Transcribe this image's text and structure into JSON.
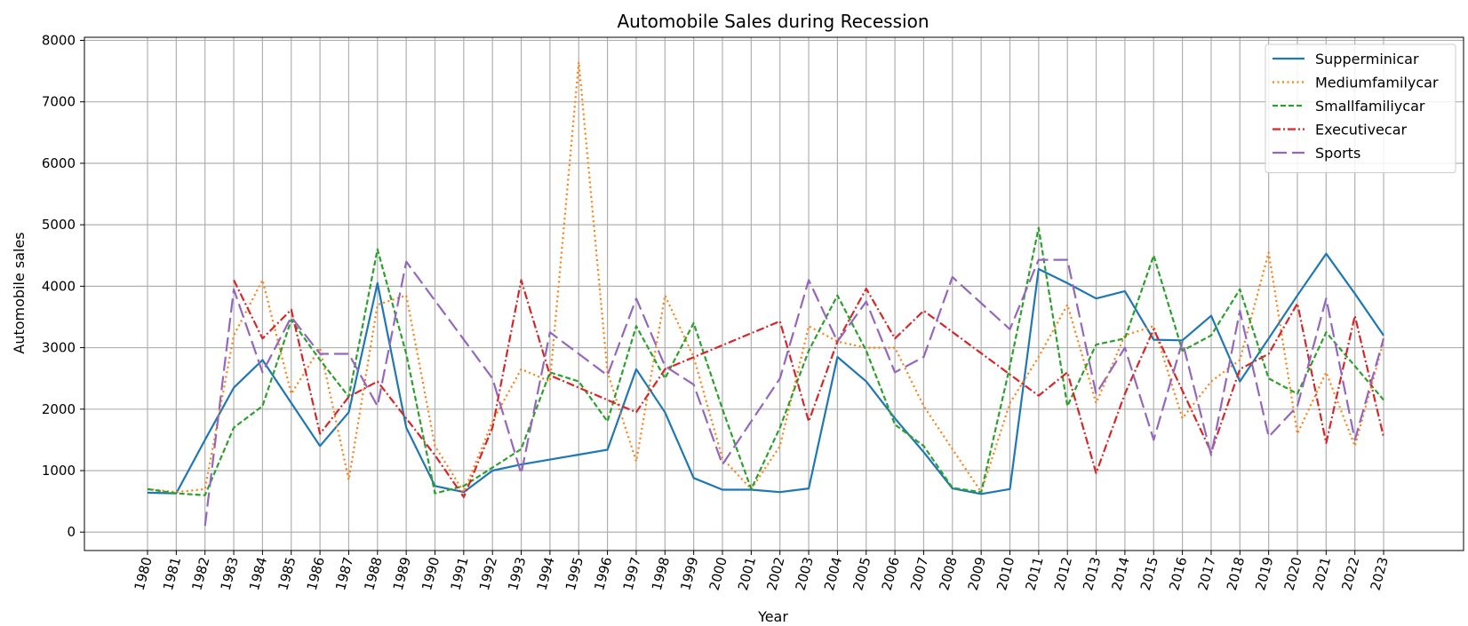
{
  "chart_data": {
    "type": "line",
    "title": "Automobile Sales during Recession",
    "xlabel": "Year",
    "ylabel": "Automobile sales",
    "ylim": [
      -300,
      8050
    ],
    "yticks": [
      0,
      1000,
      2000,
      3000,
      4000,
      5000,
      6000,
      7000,
      8000
    ],
    "grid": true,
    "legend_position": "top-right",
    "x": [
      "1980",
      "1981",
      "1982",
      "1983",
      "1984",
      "1985",
      "1986",
      "1987",
      "1988",
      "1989",
      "1990",
      "1991",
      "1992",
      "1993",
      "1994",
      "1995",
      "1996",
      "1997",
      "1998",
      "1999",
      "2000",
      "2001",
      "2002",
      "2003",
      "2004",
      "2005",
      "2006",
      "2007",
      "2008",
      "2009",
      "2010",
      "2011",
      "2012",
      "2013",
      "2014",
      "2015",
      "2016",
      "2017",
      "2018",
      "2019",
      "2020",
      "2021",
      "2022",
      "2023"
    ],
    "series": [
      {
        "name": "Supperminicar",
        "color": "#1f77b4",
        "dash": "solid",
        "values": [
          640,
          630,
          1500,
          2350,
          2800,
          2100,
          1400,
          1950,
          4050,
          1700,
          750,
          650,
          1000,
          1100,
          1180,
          1260,
          1340,
          2650,
          1950,
          880,
          690,
          690,
          650,
          710,
          2850,
          2450,
          1850,
          1300,
          710,
          620,
          700,
          4280,
          4050,
          3800,
          3920,
          3130,
          3120,
          3520,
          2450,
          3150,
          3850,
          4530,
          3880,
          3200
        ]
      },
      {
        "name": "Mediumfamilycar",
        "color": "#ff7f0e",
        "dash": "dotted",
        "values": [
          700,
          650,
          700,
          3200,
          4100,
          2250,
          3000,
          850,
          3700,
          3850,
          1400,
          650,
          1800,
          2650,
          2450,
          7650,
          2600,
          1150,
          3850,
          2850,
          1200,
          700,
          1400,
          3350,
          3100,
          3000,
          3000,
          2050,
          1350,
          650,
          2100,
          2850,
          3700,
          2100,
          3200,
          3350,
          1850,
          2450,
          2800,
          4550,
          1600,
          2600,
          1400,
          3100
        ]
      },
      {
        "name": "Smallfamiliycar",
        "color": "#2ca02c",
        "dash": "dashed",
        "values": [
          700,
          630,
          600,
          1700,
          2050,
          3450,
          2800,
          2200,
          4600,
          2900,
          630,
          750,
          1050,
          1350,
          2600,
          2450,
          1800,
          3350,
          2500,
          3400,
          2000,
          700,
          1700,
          2950,
          3850,
          2950,
          1750,
          1400,
          720,
          650,
          2700,
          4950,
          2050,
          3050,
          3150,
          4500,
          2950,
          3200,
          3950,
          2500,
          2250,
          3250,
          2700,
          2150
        ]
      },
      {
        "name": "Executivecar",
        "color": "#d62728",
        "dash": "dashdot",
        "values": [
          null,
          null,
          null,
          4100,
          3150,
          3620,
          1600,
          2200,
          2450,
          1850,
          1250,
          570,
          1700,
          4100,
          2550,
          2350,
          2150,
          1950,
          2650,
          null,
          null,
          null,
          3430,
          1800,
          3100,
          3960,
          3150,
          3600,
          null,
          null,
          null,
          2220,
          2600,
          960,
          2250,
          3300,
          2300,
          1300,
          2650,
          2900,
          3720,
          1450,
          3520,
          1550
        ]
      },
      {
        "name": "Sports",
        "color": "#9467bd",
        "dash": "longdash",
        "values": [
          null,
          null,
          100,
          3950,
          2600,
          3500,
          2900,
          2900,
          2050,
          4400,
          null,
          null,
          2500,
          950,
          3250,
          null,
          2550,
          3800,
          2700,
          2400,
          1100,
          null,
          2500,
          4100,
          3100,
          3750,
          2600,
          2850,
          4150,
          null,
          3300,
          4430,
          4430,
          2250,
          3000,
          1500,
          3100,
          1250,
          3600,
          1550,
          2050,
          3800,
          1500,
          3150
        ]
      }
    ]
  }
}
